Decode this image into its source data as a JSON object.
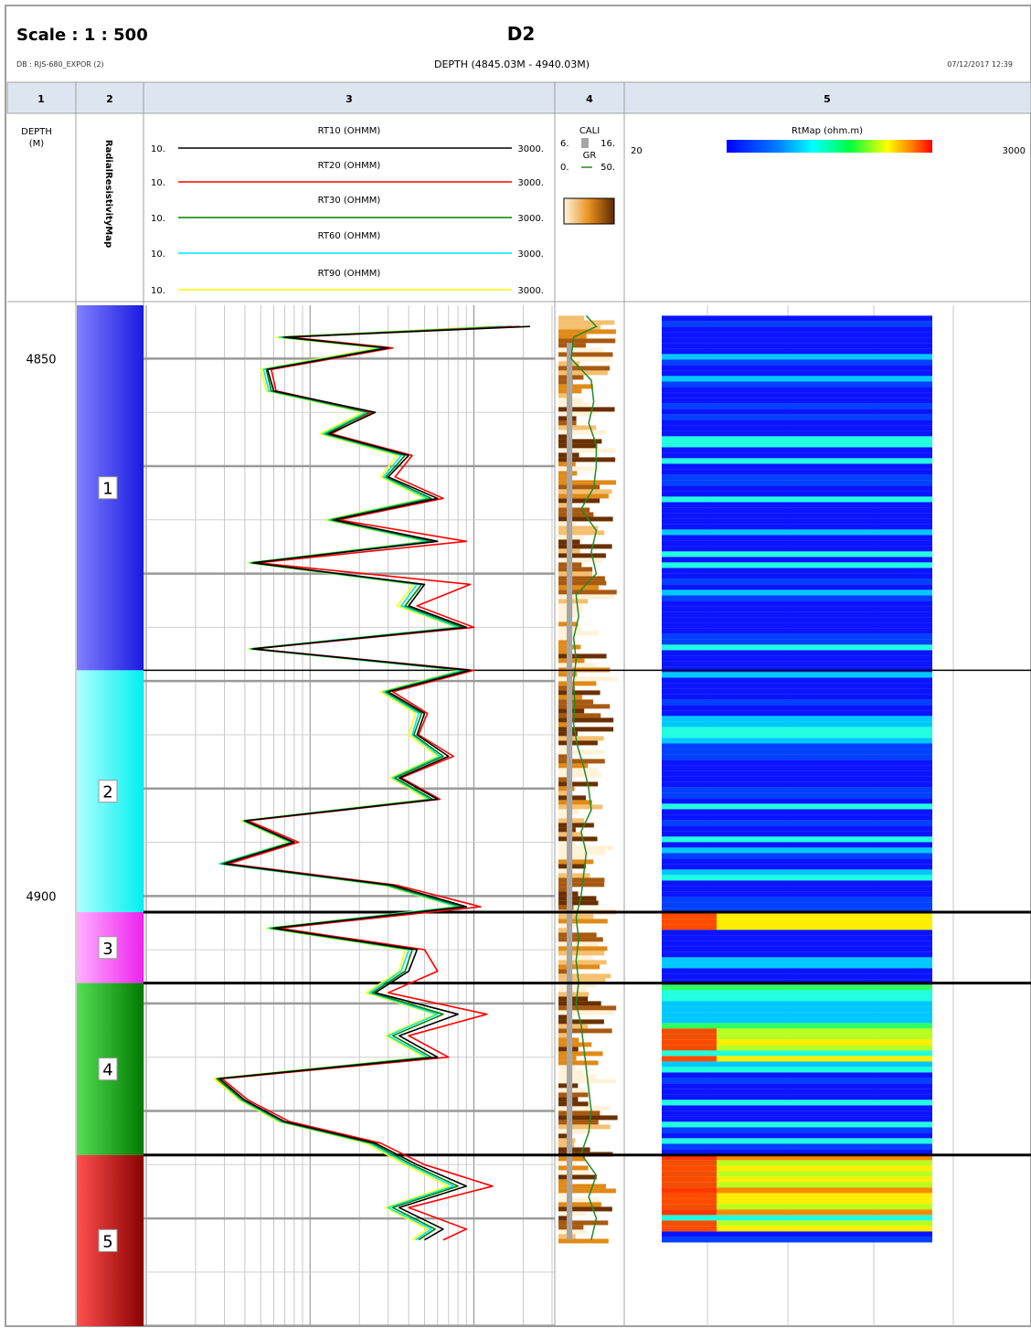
{
  "header": {
    "scale": "Scale : 1 : 500",
    "well": "D2",
    "db": "DB : RJS-680_EXPOR (2)",
    "depth_range": "DEPTH (4845.03M - 4940.03M)",
    "timestamp": "07/12/2017 12:39"
  },
  "tracks": [
    {
      "number": "1"
    },
    {
      "number": "2"
    },
    {
      "number": "3"
    },
    {
      "number": "4"
    },
    {
      "number": "5"
    }
  ],
  "track1": {
    "label": "DEPTH",
    "unit": "(M)"
  },
  "track2": {
    "label": "RadialResistivityMap"
  },
  "track3": {
    "curves": [
      {
        "name": "RT10 (OHMM)",
        "min": "10.",
        "max": "3000.",
        "color": "#000000"
      },
      {
        "name": "RT20 (OHMM)",
        "min": "10.",
        "max": "3000.",
        "color": "#ff0000"
      },
      {
        "name": "RT30 (OHMM)",
        "min": "10.",
        "max": "3000.",
        "color": "#008000"
      },
      {
        "name": "RT60 (OHMM)",
        "min": "10.",
        "max": "3000.",
        "color": "#00e5ee"
      },
      {
        "name": "RT90 (OHMM)",
        "min": "10.",
        "max": "3000.",
        "color": "#ffff00"
      }
    ]
  },
  "track4": {
    "cali": {
      "name": "CALI",
      "min": "6.",
      "max": "16.",
      "color": "#a6a6a6"
    },
    "gr": {
      "name": "GR",
      "min": "0.",
      "max": "50.",
      "color": "#228b22"
    }
  },
  "track5": {
    "name": "RtMap (ohm.m)",
    "min": "20",
    "max": "3000"
  },
  "chart_data": {
    "type": "line",
    "title": "D2",
    "depth_axis": {
      "label": "DEPTH (M)",
      "range": [
        4845.03,
        4940.03
      ],
      "ticks": [
        "4850",
        "4900"
      ]
    },
    "x_scale": "log",
    "x_range": [
      10,
      3000
    ],
    "zones": [
      {
        "label": "1",
        "top": 4845.03,
        "bottom": 4879.0,
        "color": "#3b3bff"
      },
      {
        "label": "2",
        "top": 4879.0,
        "bottom": 4901.5,
        "color": "#00ffff"
      },
      {
        "label": "3",
        "top": 4901.5,
        "bottom": 4908.1,
        "color": "#ff55ff"
      },
      {
        "label": "4",
        "top": 4908.1,
        "bottom": 4924.1,
        "color": "#22bb22"
      },
      {
        "label": "5",
        "top": 4924.1,
        "bottom": 4940.03,
        "color": "#cc2a2a"
      }
    ],
    "series": [
      {
        "name": "RT10 (OHMM)",
        "color": "#000000",
        "depth": [
          4847,
          4848,
          4849,
          4851,
          4853,
          4855,
          4857,
          4859,
          4861,
          4863,
          4865,
          4867,
          4869,
          4871,
          4873,
          4875,
          4877,
          4879,
          4881,
          4883,
          4885,
          4887,
          4889,
          4891,
          4893,
          4895,
          4897,
          4899,
          4901,
          4903,
          4905,
          4907,
          4909,
          4911,
          4913,
          4915,
          4917,
          4919,
          4921,
          4923,
          4925,
          4927,
          4929,
          4931,
          4932
        ],
        "values": [
          2200,
          70,
          300,
          55,
          60,
          250,
          130,
          400,
          300,
          600,
          140,
          600,
          45,
          500,
          400,
          900,
          45,
          950,
          300,
          500,
          450,
          700,
          350,
          600,
          40,
          80,
          30,
          320,
          900,
          60,
          450,
          400,
          250,
          800,
          350,
          600,
          28,
          40,
          70,
          250,
          450,
          900,
          350,
          650,
          500
        ]
      },
      {
        "name": "RT20 (OHMM)",
        "color": "#ff0000",
        "depth": [
          4847,
          4848,
          4849,
          4851,
          4853,
          4855,
          4857,
          4859,
          4861,
          4863,
          4865,
          4867,
          4869,
          4871,
          4873,
          4875,
          4877,
          4879,
          4881,
          4883,
          4885,
          4887,
          4889,
          4891,
          4893,
          4895,
          4897,
          4899,
          4901,
          4903,
          4905,
          4907,
          4909,
          4911,
          4913,
          4915,
          4917,
          4919,
          4921,
          4923,
          4925,
          4927,
          4929,
          4931,
          4932
        ],
        "values": [
          1900,
          75,
          320,
          58,
          62,
          240,
          135,
          420,
          330,
          650,
          150,
          900,
          48,
          950,
          450,
          1000,
          45,
          1000,
          320,
          520,
          460,
          750,
          360,
          620,
          42,
          85,
          32,
          340,
          1100,
          65,
          500,
          600,
          300,
          1200,
          400,
          700,
          29,
          42,
          75,
          270,
          500,
          1300,
          400,
          900,
          650
        ]
      },
      {
        "name": "RT30 (OHMM)",
        "color": "#008000",
        "depth": [
          4847,
          4848,
          4849,
          4851,
          4853,
          4855,
          4857,
          4859,
          4861,
          4863,
          4865,
          4867,
          4869,
          4871,
          4873,
          4875,
          4877,
          4879,
          4881,
          4883,
          4885,
          4887,
          4889,
          4891,
          4893,
          4895,
          4897,
          4899,
          4901,
          4903,
          4905,
          4907,
          4909,
          4911,
          4913,
          4915,
          4917,
          4919,
          4921,
          4923,
          4925,
          4927,
          4929,
          4931,
          4932
        ],
        "values": [
          1700,
          68,
          290,
          54,
          58,
          230,
          125,
          380,
          290,
          550,
          135,
          560,
          44,
          480,
          380,
          850,
          44,
          900,
          290,
          480,
          430,
          650,
          330,
          560,
          40,
          78,
          29,
          300,
          850,
          58,
          420,
          380,
          240,
          650,
          320,
          550,
          27,
          39,
          68,
          240,
          420,
          800,
          320,
          580,
          460
        ]
      },
      {
        "name": "RT60 (OHMM)",
        "color": "#00e5ee",
        "depth": [
          4847,
          4848,
          4849,
          4851,
          4853,
          4855,
          4857,
          4859,
          4861,
          4863,
          4865,
          4867,
          4869,
          4871,
          4873,
          4875,
          4877,
          4879,
          4881,
          4883,
          4885,
          4887,
          4889,
          4891,
          4893,
          4895,
          4897,
          4899,
          4901,
          4903,
          4905,
          4907,
          4909,
          4911,
          4913,
          4915,
          4917,
          4919,
          4921,
          4923,
          4925,
          4927,
          4929,
          4931,
          4932
        ],
        "values": [
          1500,
          65,
          280,
          52,
          56,
          220,
          120,
          360,
          280,
          520,
          130,
          520,
          43,
          450,
          360,
          800,
          43,
          850,
          280,
          460,
          420,
          620,
          320,
          540,
          39,
          76,
          28,
          290,
          800,
          56,
          400,
          360,
          230,
          600,
          300,
          520,
          27,
          38,
          66,
          230,
          400,
          750,
          300,
          550,
          440
        ]
      },
      {
        "name": "RT90 (OHMM)",
        "color": "#ffff00",
        "depth": [
          4847,
          4848,
          4849,
          4851,
          4853,
          4855,
          4857,
          4859,
          4861,
          4863,
          4865,
          4867,
          4869,
          4871,
          4873,
          4875,
          4877,
          4879,
          4881,
          4883,
          4885,
          4887,
          4889,
          4891,
          4893,
          4895,
          4897,
          4899,
          4901,
          4903,
          4905,
          4907,
          4909,
          4911,
          4913,
          4915,
          4917,
          4919,
          4921,
          4923,
          4925,
          4927,
          4929,
          4931,
          4932
        ],
        "values": [
          1300,
          62,
          260,
          50,
          54,
          210,
          115,
          340,
          270,
          500,
          125,
          500,
          42,
          430,
          340,
          780,
          42,
          820,
          270,
          440,
          400,
          600,
          310,
          520,
          38,
          74,
          28,
          280,
          780,
          54,
          380,
          350,
          220,
          580,
          290,
          500,
          26,
          37,
          64,
          220,
          380,
          700,
          290,
          520,
          420
        ]
      },
      {
        "name": "GR",
        "color": "#228b22",
        "depth": [
          4846,
          4847,
          4848,
          4850,
          4852,
          4854,
          4856,
          4858,
          4860,
          4862,
          4864,
          4866,
          4868,
          4870,
          4872,
          4874,
          4876,
          4878,
          4880,
          4882,
          4884,
          4886,
          4888,
          4890,
          4892,
          4894,
          4896,
          4898,
          4900,
          4902,
          4904,
          4906,
          4908,
          4910,
          4912,
          4914,
          4916,
          4918,
          4920,
          4922,
          4924,
          4926,
          4928,
          4930,
          4932
        ],
        "values": [
          22,
          30,
          12,
          10,
          26,
          28,
          24,
          30,
          30,
          28,
          18,
          30,
          26,
          30,
          14,
          16,
          12,
          14,
          12,
          13,
          12,
          15,
          20,
          24,
          26,
          18,
          22,
          20,
          18,
          14,
          16,
          14,
          16,
          14,
          18,
          20,
          22,
          24,
          26,
          24,
          18,
          30,
          24,
          30,
          26
        ]
      }
    ]
  }
}
